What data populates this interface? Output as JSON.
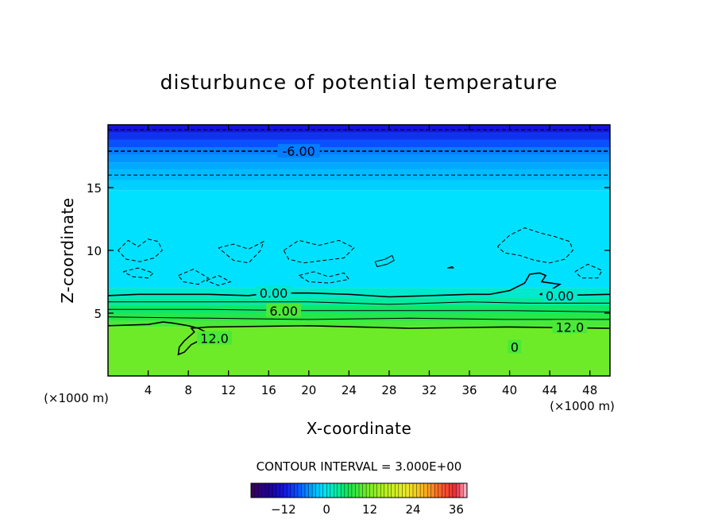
{
  "chart_data": {
    "type": "heatmap",
    "title": "disturbunce of potential temperature",
    "xlabel": "X-coordinate",
    "ylabel": "Z-coordinate",
    "x_unit_label": "(×1000 m)",
    "x_unit_label_right": "(×1000 m)",
    "xlim": [
      0,
      50
    ],
    "ylim": [
      0,
      20
    ],
    "x_ticks": [
      4,
      8,
      12,
      16,
      20,
      24,
      28,
      32,
      36,
      40,
      44,
      48
    ],
    "y_ticks": [
      5,
      10,
      15
    ],
    "contour_interval_text": "CONTOUR INTERVAL = 3.000E+00",
    "colorbar": {
      "min": -21,
      "max": 39,
      "ticks": [
        -12,
        0,
        12,
        24,
        36
      ]
    },
    "contour_labels": [
      {
        "text": "-6.00",
        "x": 19,
        "z": 17.9
      },
      {
        "text": "0.00",
        "x": 16.5,
        "z": 6.6
      },
      {
        "text": "6.00",
        "x": 17.5,
        "z": 5.2
      },
      {
        "text": "12.0",
        "x": 10.6,
        "z": 3.0
      },
      {
        "text": "0.00",
        "x": 45,
        "z": 6.4
      },
      {
        "text": "12.0",
        "x": 46,
        "z": 3.9
      },
      {
        "text": "0",
        "x": 40.5,
        "z": 2.3
      }
    ],
    "layers": [
      {
        "z_from": 19.4,
        "z_to": 20.0,
        "value": -12
      },
      {
        "z_from": 18.8,
        "z_to": 19.4,
        "value": -10
      },
      {
        "z_from": 18.2,
        "z_to": 18.8,
        "value": -8
      },
      {
        "z_from": 17.6,
        "z_to": 18.2,
        "value": -6
      },
      {
        "z_from": 17.0,
        "z_to": 17.6,
        "value": -5
      },
      {
        "z_from": 16.4,
        "z_to": 17.0,
        "value": -4
      },
      {
        "z_from": 15.6,
        "z_to": 16.4,
        "value": -3
      },
      {
        "z_from": 14.8,
        "z_to": 15.6,
        "value": -2
      },
      {
        "z_from": 7.0,
        "z_to": 14.8,
        "value": -1
      },
      {
        "z_from": 6.2,
        "z_to": 7.0,
        "value": 1
      },
      {
        "z_from": 5.6,
        "z_to": 6.2,
        "value": 3
      },
      {
        "z_from": 5.0,
        "z_to": 5.6,
        "value": 5
      },
      {
        "z_from": 4.4,
        "z_to": 5.0,
        "value": 7
      },
      {
        "z_from": 3.9,
        "z_to": 4.4,
        "value": 9
      },
      {
        "z_from": 0.0,
        "z_to": 3.9,
        "value": 11
      }
    ],
    "contour_lines": [
      {
        "value": -6,
        "style": "dashed",
        "points": [
          [
            0,
            17.9
          ],
          [
            50,
            17.9
          ]
        ]
      },
      {
        "value": -3,
        "style": "dashed",
        "points": [
          [
            0,
            16.0
          ],
          [
            50,
            16.0
          ]
        ]
      },
      {
        "value": -9,
        "style": "dashed",
        "points": [
          [
            0,
            19.6
          ],
          [
            50,
            19.6
          ]
        ]
      },
      {
        "value": 0,
        "style": "solid",
        "points": [
          [
            0,
            6.4
          ],
          [
            3,
            6.5
          ],
          [
            6,
            6.5
          ],
          [
            10,
            6.5
          ],
          [
            14,
            6.4
          ],
          [
            15,
            6.5
          ],
          [
            15.5,
            6.9
          ],
          [
            16,
            6.6
          ],
          [
            20,
            6.6
          ],
          [
            24,
            6.5
          ],
          [
            28,
            6.3
          ],
          [
            32,
            6.4
          ],
          [
            36,
            6.5
          ],
          [
            38,
            6.5
          ],
          [
            40,
            6.8
          ],
          [
            41.5,
            7.4
          ],
          [
            42,
            8.1
          ],
          [
            43,
            8.2
          ],
          [
            43.6,
            8.0
          ],
          [
            43.2,
            7.5
          ],
          [
            45,
            7.3
          ],
          [
            44,
            6.8
          ],
          [
            43,
            6.5
          ],
          [
            44,
            6.4
          ],
          [
            50,
            6.5
          ]
        ]
      },
      {
        "value": 3,
        "style": "solid",
        "points": [
          [
            0,
            5.9
          ],
          [
            10,
            5.9
          ],
          [
            20,
            5.9
          ],
          [
            28,
            5.7
          ],
          [
            36,
            5.9
          ],
          [
            42,
            5.8
          ],
          [
            50,
            5.8
          ]
        ]
      },
      {
        "value": 6,
        "style": "solid",
        "points": [
          [
            0,
            5.3
          ],
          [
            10,
            5.3
          ],
          [
            20,
            5.2
          ],
          [
            30,
            5.2
          ],
          [
            40,
            5.2
          ],
          [
            50,
            5.1
          ]
        ]
      },
      {
        "value": 9,
        "style": "solid",
        "points": [
          [
            0,
            4.7
          ],
          [
            10,
            4.6
          ],
          [
            20,
            4.5
          ],
          [
            30,
            4.6
          ],
          [
            40,
            4.5
          ],
          [
            50,
            4.5
          ]
        ]
      },
      {
        "value": 12,
        "style": "solid",
        "points": [
          [
            0,
            4.0
          ],
          [
            4,
            4.1
          ],
          [
            5.5,
            4.3
          ],
          [
            6.5,
            4.2
          ],
          [
            8,
            4.0
          ],
          [
            9,
            3.8
          ],
          [
            10,
            3.4
          ],
          [
            9.3,
            2.9
          ],
          [
            8.3,
            2.5
          ],
          [
            7.6,
            1.9
          ],
          [
            7.0,
            1.7
          ],
          [
            7.1,
            2.3
          ],
          [
            7.6,
            2.8
          ],
          [
            8.6,
            3.5
          ],
          [
            8.3,
            3.8
          ],
          [
            10,
            3.9
          ],
          [
            20,
            4.0
          ],
          [
            30,
            3.8
          ],
          [
            40,
            3.9
          ],
          [
            50,
            3.8
          ]
        ]
      },
      {
        "value": 12,
        "style": "solid",
        "points": [
          [
            40.2,
            1.9
          ],
          [
            40.6,
            2.1
          ],
          [
            40.8,
            2.6
          ],
          [
            40.5,
            2.8
          ],
          [
            40.2,
            2.5
          ],
          [
            40.2,
            1.9
          ]
        ]
      },
      {
        "value": -3,
        "style": "dashed",
        "points": [
          [
            1,
            10.0
          ],
          [
            2,
            10.8
          ],
          [
            3,
            10.3
          ],
          [
            4,
            10.9
          ],
          [
            5,
            10.7
          ],
          [
            5.4,
            10.0
          ],
          [
            4.6,
            9.4
          ],
          [
            3.2,
            9.1
          ],
          [
            1.8,
            9.3
          ],
          [
            1,
            10.0
          ]
        ]
      },
      {
        "value": -3,
        "style": "dashed",
        "points": [
          [
            1.5,
            8.3
          ],
          [
            3,
            8.6
          ],
          [
            4.5,
            8.2
          ],
          [
            4,
            7.8
          ],
          [
            2.5,
            7.9
          ],
          [
            1.5,
            8.3
          ]
        ]
      },
      {
        "value": -3,
        "style": "dashed",
        "points": [
          [
            11,
            10.2
          ],
          [
            12.5,
            10.5
          ],
          [
            14,
            10.1
          ],
          [
            15.5,
            10.7
          ],
          [
            15.2,
            10.0
          ],
          [
            14,
            9.0
          ],
          [
            12.5,
            9.2
          ],
          [
            11,
            10.2
          ]
        ]
      },
      {
        "value": -3,
        "style": "dashed",
        "points": [
          [
            17.5,
            10.0
          ],
          [
            19,
            10.8
          ],
          [
            21,
            10.4
          ],
          [
            23,
            10.8
          ],
          [
            24.5,
            10.2
          ],
          [
            23.5,
            9.4
          ],
          [
            21.5,
            9.2
          ],
          [
            19.5,
            9.0
          ],
          [
            18,
            9.3
          ],
          [
            17.5,
            10.0
          ]
        ]
      },
      {
        "value": -3,
        "style": "dashed",
        "points": [
          [
            19,
            8.0
          ],
          [
            20.5,
            8.3
          ],
          [
            22,
            7.9
          ],
          [
            23.5,
            8.2
          ],
          [
            24,
            7.7
          ],
          [
            22,
            7.4
          ],
          [
            20,
            7.5
          ],
          [
            19,
            8.0
          ]
        ]
      },
      {
        "value": -3,
        "style": "dashed",
        "points": [
          [
            7,
            8.0
          ],
          [
            8.5,
            8.5
          ],
          [
            10,
            7.8
          ],
          [
            9,
            7.3
          ],
          [
            7.5,
            7.5
          ],
          [
            7,
            8.0
          ]
        ]
      },
      {
        "value": -3,
        "style": "dashed",
        "points": [
          [
            9.8,
            7.6
          ],
          [
            11,
            8.0
          ],
          [
            12.2,
            7.5
          ],
          [
            11,
            7.2
          ],
          [
            9.8,
            7.6
          ]
        ]
      },
      {
        "value": -3,
        "style": "dashed",
        "points": [
          [
            38.8,
            10.3
          ],
          [
            40,
            11.2
          ],
          [
            41.5,
            11.8
          ],
          [
            43,
            11.4
          ],
          [
            44.5,
            11.1
          ],
          [
            46,
            10.7
          ],
          [
            46.3,
            10.0
          ],
          [
            45.5,
            9.3
          ],
          [
            44,
            9.0
          ],
          [
            42.5,
            9.2
          ],
          [
            41,
            9.6
          ],
          [
            39.5,
            9.8
          ],
          [
            38.8,
            10.3
          ]
        ]
      },
      {
        "value": -3,
        "style": "dashed",
        "points": [
          [
            46.5,
            8.3
          ],
          [
            47.8,
            8.9
          ],
          [
            49.2,
            8.4
          ],
          [
            48.8,
            7.8
          ],
          [
            47.2,
            7.8
          ],
          [
            46.5,
            8.3
          ]
        ]
      },
      {
        "value": 3,
        "style": "solid",
        "points": [
          [
            26.6,
            9.1
          ],
          [
            27.6,
            9.3
          ],
          [
            28.3,
            9.6
          ],
          [
            28.5,
            9.2
          ],
          [
            27.8,
            8.9
          ],
          [
            26.8,
            8.7
          ],
          [
            26.6,
            9.1
          ]
        ]
      },
      {
        "value": 3,
        "style": "solid",
        "points": [
          [
            33.8,
            8.6
          ],
          [
            34.3,
            8.7
          ],
          [
            34.4,
            8.6
          ],
          [
            33.8,
            8.6
          ]
        ]
      }
    ]
  }
}
